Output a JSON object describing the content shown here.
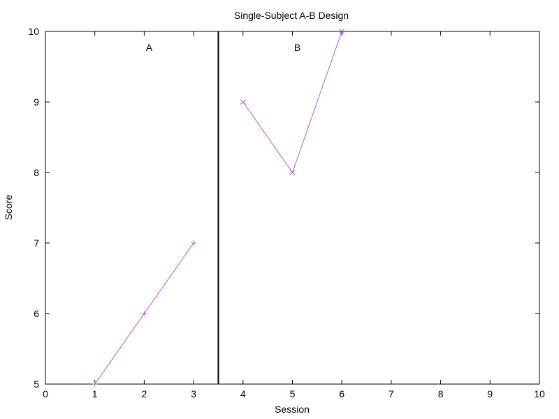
{
  "chart_data": {
    "type": "line",
    "title": "Single-Subject A-B Design",
    "xlabel": "Session",
    "ylabel": "Score",
    "xlim": [
      0,
      10
    ],
    "ylim": [
      5,
      10
    ],
    "xticks": [
      0,
      1,
      2,
      3,
      4,
      5,
      6,
      7,
      8,
      9,
      10
    ],
    "yticks": [
      5,
      6,
      7,
      8,
      9,
      10
    ],
    "grid": false,
    "phase_change_x": 3.5,
    "phases": [
      {
        "label": "A",
        "x": 2.1,
        "y": 9.77
      },
      {
        "label": "B",
        "x": 5.1,
        "y": 9.77
      }
    ],
    "series": [
      {
        "x": [
          1,
          2,
          3
        ],
        "y": [
          5,
          6,
          7
        ],
        "color": "#bb55dd",
        "marker": "plus"
      },
      {
        "x": [
          4,
          5,
          6
        ],
        "y": [
          9,
          8,
          10
        ],
        "color": "#bb55dd",
        "marker": "cross"
      }
    ]
  }
}
